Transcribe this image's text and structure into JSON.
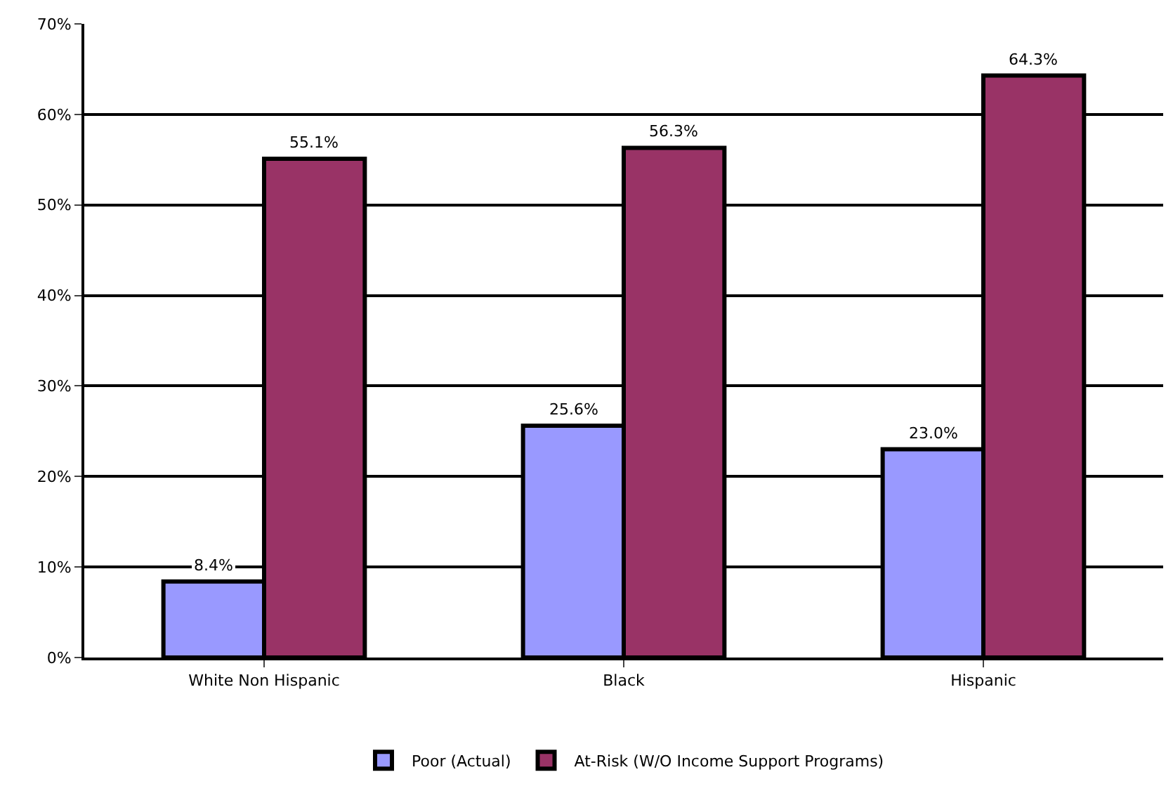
{
  "chart_data": {
    "type": "bar",
    "categories": [
      "White Non Hispanic",
      "Black",
      "Hispanic"
    ],
    "series": [
      {
        "name": "Poor (Actual)",
        "color": "#9999ff",
        "values": [
          8.4,
          25.6,
          23.0
        ],
        "value_labels": [
          "8.4%",
          "25.6%",
          "23.0%"
        ]
      },
      {
        "name": "At-Risk (W/O Income Support Programs)",
        "color": "#993366",
        "values": [
          55.1,
          56.3,
          64.3
        ],
        "value_labels": [
          "55.1%",
          "56.3%",
          "64.3%"
        ]
      }
    ],
    "ylim": [
      0,
      70
    ],
    "yticks": [
      {
        "value": 0,
        "label": "0%"
      },
      {
        "value": 10,
        "label": "10%"
      },
      {
        "value": 20,
        "label": "20%"
      },
      {
        "value": 30,
        "label": "30%"
      },
      {
        "value": 40,
        "label": "40%"
      },
      {
        "value": 50,
        "label": "50%"
      },
      {
        "value": 60,
        "label": "60%"
      },
      {
        "value": 70,
        "label": "70%"
      }
    ],
    "grid": "y",
    "legend": "bottom"
  }
}
